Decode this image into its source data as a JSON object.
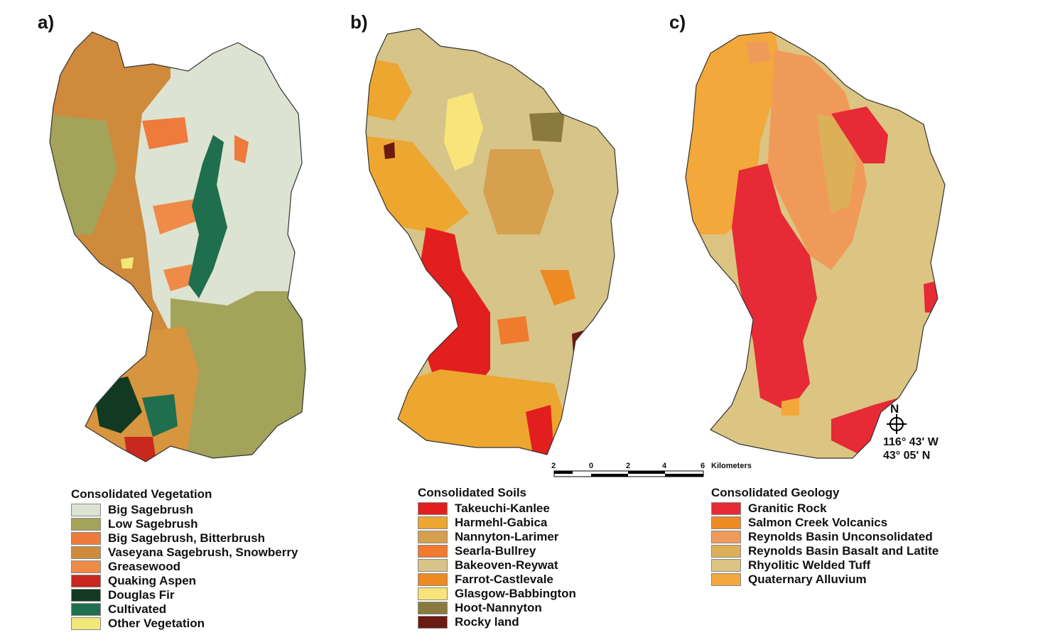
{
  "panels": [
    {
      "letter": "a)",
      "legend": {
        "title": "Consolidated Vegetation",
        "items": [
          {
            "label": "Big Sagebrush",
            "color": "#dde3d2"
          },
          {
            "label": "Low Sagebrush",
            "color": "#a3a35a"
          },
          {
            "label": "Big Sagebrush, Bitterbrush",
            "color": "#ee7a3c"
          },
          {
            "label": "Vaseyana Sagebrush, Snowberry",
            "color": "#cf8a3c"
          },
          {
            "label": "Greasewood",
            "color": "#f08a48"
          },
          {
            "label": "Quaking Aspen",
            "color": "#c8281e"
          },
          {
            "label": "Douglas Fir",
            "color": "#123a22"
          },
          {
            "label": "Cultivated",
            "color": "#1f6e4e"
          },
          {
            "label": "Other Vegetation",
            "color": "#f2e878"
          }
        ]
      }
    },
    {
      "letter": "b)",
      "legend": {
        "title": "Consolidated Soils",
        "items": [
          {
            "label": "Takeuchi-Kanlee",
            "color": "#e31e1e"
          },
          {
            "label": "Harmehl-Gabica",
            "color": "#eda630"
          },
          {
            "label": "Nannyton-Larimer",
            "color": "#d6a04e"
          },
          {
            "label": "Searla-Bullrey",
            "color": "#f07a2e"
          },
          {
            "label": "Bakeoven-Reywat",
            "color": "#d6c488"
          },
          {
            "label": "Farrot-Castlevale",
            "color": "#ee8a22"
          },
          {
            "label": "Glasgow-Babbington",
            "color": "#f8e47a"
          },
          {
            "label": "Hoot-Nannyton",
            "color": "#8a7a3e"
          },
          {
            "label": "Rocky land",
            "color": "#6a1a12"
          }
        ]
      }
    },
    {
      "letter": "c)",
      "legend": {
        "title": "Consolidated Geology",
        "items": [
          {
            "label": "Granitic Rock",
            "color": "#e62a36"
          },
          {
            "label": "Salmon Creek Volcanics",
            "color": "#ee8a22"
          },
          {
            "label": "Reynolds Basin Unconsolidated",
            "color": "#f09a5a"
          },
          {
            "label": "Reynolds Basin Basalt and Latite",
            "color": "#dcb058"
          },
          {
            "label": "Rhyolitic Welded Tuff",
            "color": "#dcc482"
          },
          {
            "label": "Quaternary Alluvium",
            "color": "#f2a83a"
          }
        ]
      }
    }
  ],
  "scale_bar": {
    "ticks": [
      "2",
      "0",
      "2",
      "4",
      "6"
    ],
    "unit": "Kilometers"
  },
  "north_arrow": {
    "label": "N",
    "longitude": "116° 43' W",
    "latitude": "43° 05' N"
  }
}
